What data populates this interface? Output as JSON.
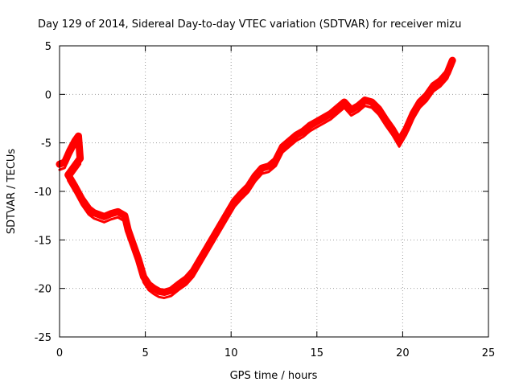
{
  "chart_data": {
    "type": "scatter",
    "title": "Day 129 of 2014, Sidereal Day-to-day VTEC variation (SDTVAR) for receiver mizu",
    "xlabel": "GPS time / hours",
    "ylabel": "SDTVAR / TECUs",
    "xlim": [
      0,
      25
    ],
    "ylim": [
      -25,
      5
    ],
    "xticks": [
      0,
      5,
      10,
      15,
      20,
      25
    ],
    "yticks": [
      -25,
      -20,
      -15,
      -10,
      -5,
      0,
      5
    ],
    "grid": true,
    "marker": "+",
    "series": [
      {
        "name": "mizu",
        "color": "#ff0000",
        "x": [
          0.0,
          0.3,
          0.6,
          0.9,
          1.1,
          1.2,
          0.5,
          0.9,
          1.3,
          1.7,
          2.0,
          2.3,
          2.6,
          3.0,
          3.4,
          3.8,
          4.0,
          4.3,
          4.6,
          4.9,
          5.2,
          5.5,
          5.8,
          6.1,
          6.5,
          7.0,
          7.4,
          7.8,
          8.2,
          8.6,
          9.0,
          9.4,
          9.8,
          10.2,
          10.6,
          11.0,
          11.4,
          11.8,
          12.2,
          12.6,
          13.0,
          13.4,
          13.8,
          14.2,
          14.6,
          15.0,
          15.4,
          15.8,
          16.2,
          16.6,
          17.0,
          17.4,
          17.8,
          18.2,
          18.6,
          19.0,
          19.4,
          19.8,
          20.2,
          20.6,
          21.0,
          21.4,
          21.8,
          22.2,
          22.6,
          22.9
        ],
        "y": [
          -7.2,
          -7.0,
          -5.8,
          -4.8,
          -4.3,
          -6.6,
          -8.3,
          -9.5,
          -10.8,
          -11.8,
          -12.2,
          -12.4,
          -12.6,
          -12.3,
          -12.1,
          -12.5,
          -14.0,
          -15.5,
          -17.0,
          -18.8,
          -19.6,
          -20.0,
          -20.3,
          -20.4,
          -20.2,
          -19.5,
          -19.0,
          -18.2,
          -17.0,
          -15.8,
          -14.6,
          -13.4,
          -12.2,
          -11.0,
          -10.2,
          -9.5,
          -8.4,
          -7.6,
          -7.4,
          -6.8,
          -5.4,
          -4.8,
          -4.2,
          -3.8,
          -3.2,
          -2.8,
          -2.4,
          -2.0,
          -1.4,
          -0.8,
          -1.6,
          -1.2,
          -0.6,
          -0.8,
          -1.5,
          -2.6,
          -3.6,
          -4.8,
          -3.6,
          -2.0,
          -0.8,
          -0.1,
          0.9,
          1.4,
          2.2,
          3.5
        ]
      }
    ]
  }
}
